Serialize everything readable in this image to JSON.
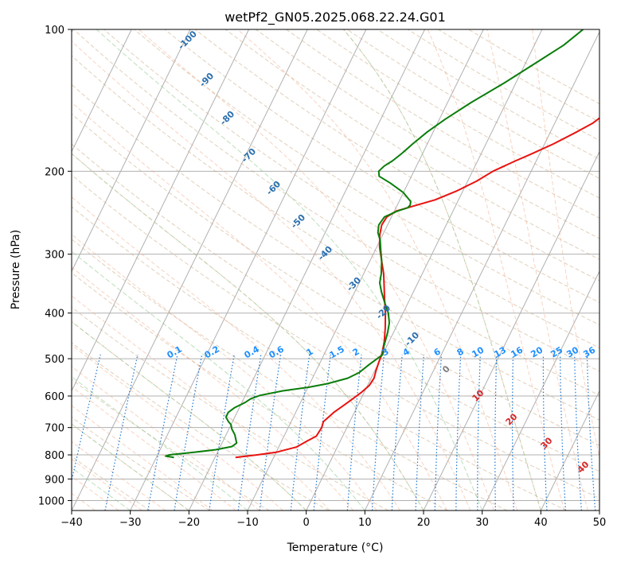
{
  "chart_data": {
    "type": "line",
    "subtype": "skew-T log-P diagram",
    "title": "wetPf2_GN05.2025.068.22.24.G01",
    "xlabel": "Temperature (°C)",
    "ylabel": "Pressure (hPa)",
    "xlim": [
      -40,
      50
    ],
    "ylim": [
      1050,
      100
    ],
    "y_scale": "log",
    "grid": true,
    "x_ticks": [
      "−40",
      "−30",
      "−20",
      "−10",
      "0",
      "10",
      "20",
      "30",
      "40",
      "50"
    ],
    "y_ticks": [
      "100",
      "200",
      "300",
      "400",
      "500",
      "600",
      "700",
      "800",
      "900",
      "1000"
    ],
    "series": [
      {
        "color": "#e8120f",
        "points": [
          [
            -16.5,
            810
          ],
          [
            -13,
            800
          ],
          [
            -10,
            790
          ],
          [
            -7,
            770
          ],
          [
            -5.5,
            745
          ],
          [
            -4.5,
            730
          ],
          [
            -4.3,
            700
          ],
          [
            -4.5,
            680
          ],
          [
            -3.5,
            650
          ],
          [
            -2.5,
            630
          ],
          [
            -1.5,
            610
          ],
          [
            -0.5,
            590
          ],
          [
            0.3,
            570
          ],
          [
            0.5,
            550
          ],
          [
            0.2,
            530
          ],
          [
            0.0,
            510
          ],
          [
            -0.2,
            488
          ],
          [
            -0.8,
            460
          ],
          [
            -1.8,
            430
          ],
          [
            -3,
            400
          ],
          [
            -4.5,
            370
          ],
          [
            -5.5,
            350
          ],
          [
            -6.6,
            330
          ],
          [
            -8,
            310
          ],
          [
            -9.5,
            290
          ],
          [
            -10.5,
            273
          ],
          [
            -11,
            260
          ],
          [
            -10.8,
            250
          ],
          [
            -9.7,
            243
          ],
          [
            -8,
            239
          ],
          [
            -4,
            230
          ],
          [
            -1,
            220
          ],
          [
            1.5,
            210
          ],
          [
            3.5,
            200
          ],
          [
            6.5,
            190
          ],
          [
            8.5,
            184
          ],
          [
            11.5,
            175
          ],
          [
            14.5,
            165
          ],
          [
            16.5,
            158
          ],
          [
            18,
            150
          ],
          [
            20,
            145
          ],
          [
            24,
            135
          ],
          [
            29,
            125
          ],
          [
            34,
            115
          ],
          [
            38,
            108
          ],
          [
            42,
            100
          ]
        ]
      },
      {
        "color": "#0a7d0a",
        "points": [
          [
            -27,
            810
          ],
          [
            -28.5,
            805
          ],
          [
            -28,
            800
          ],
          [
            -24,
            790
          ],
          [
            -20.5,
            780
          ],
          [
            -18,
            768
          ],
          [
            -17.5,
            755
          ],
          [
            -18,
            740
          ],
          [
            -18.5,
            725
          ],
          [
            -19.5,
            705
          ],
          [
            -20,
            690
          ],
          [
            -20.7,
            680
          ],
          [
            -21.5,
            665
          ],
          [
            -21.5,
            650
          ],
          [
            -20.8,
            635
          ],
          [
            -19.5,
            620
          ],
          [
            -18.8,
            608
          ],
          [
            -17.5,
            598
          ],
          [
            -14,
            585
          ],
          [
            -10,
            575
          ],
          [
            -7,
            565
          ],
          [
            -4,
            550
          ],
          [
            -2.5,
            535
          ],
          [
            -1.5,
            515
          ],
          [
            0,
            490
          ],
          [
            -0.5,
            470
          ],
          [
            -1,
            440
          ],
          [
            -1.5,
            420
          ],
          [
            -2.5,
            400
          ],
          [
            -4,
            380
          ],
          [
            -5.5,
            360
          ],
          [
            -6.5,
            345
          ],
          [
            -7,
            330
          ],
          [
            -8,
            310
          ],
          [
            -9,
            295
          ],
          [
            -10,
            280
          ],
          [
            -11,
            270
          ],
          [
            -11.5,
            260
          ],
          [
            -11.2,
            250
          ],
          [
            -9.5,
            243
          ],
          [
            -8,
            239
          ],
          [
            -7.8,
            236
          ],
          [
            -8,
            232
          ],
          [
            -10,
            222
          ],
          [
            -13,
            212
          ],
          [
            -15.5,
            205
          ],
          [
            -16,
            200
          ],
          [
            -15.5,
            195
          ],
          [
            -14.5,
            190
          ],
          [
            -13.5,
            183
          ],
          [
            -12.5,
            175
          ],
          [
            -11,
            165
          ],
          [
            -9,
            155
          ],
          [
            -6,
            143
          ],
          [
            -2,
            130
          ],
          [
            2,
            117
          ],
          [
            5,
            108
          ],
          [
            7,
            100
          ]
        ]
      }
    ],
    "mixing_ratio_labels": [
      "0.1",
      "0.2",
      "0.4",
      "0.6",
      "1",
      "1.5",
      "2",
      "3",
      "4",
      "6",
      "8",
      "10",
      "13",
      "16",
      "20",
      "25",
      "30",
      "36"
    ],
    "dry_adiabat_labels": [
      "-100",
      "-90",
      "-80",
      "-70",
      "-60",
      "-50",
      "-40",
      "-30",
      "-20",
      "-10"
    ],
    "moist_adiabat_labels": [
      "0",
      "10",
      "20",
      "30",
      "40"
    ]
  },
  "colors": {
    "temperature": "#e8120f",
    "dewpoint": "#0a7d0a",
    "dry_adiabat_line": "#c8a882",
    "saturated_adiabat_line": "#f4a582",
    "moist_green_line": "#8fca8f",
    "mixing_ratio_line": "#1f77d0",
    "dry_adiabat_label": "#2a6fb0",
    "mixing_ratio_label": "#1e8fff",
    "moist_adiabat_label": "#d62728",
    "zero_label": "#808080",
    "grid": "#b0b0b0"
  }
}
